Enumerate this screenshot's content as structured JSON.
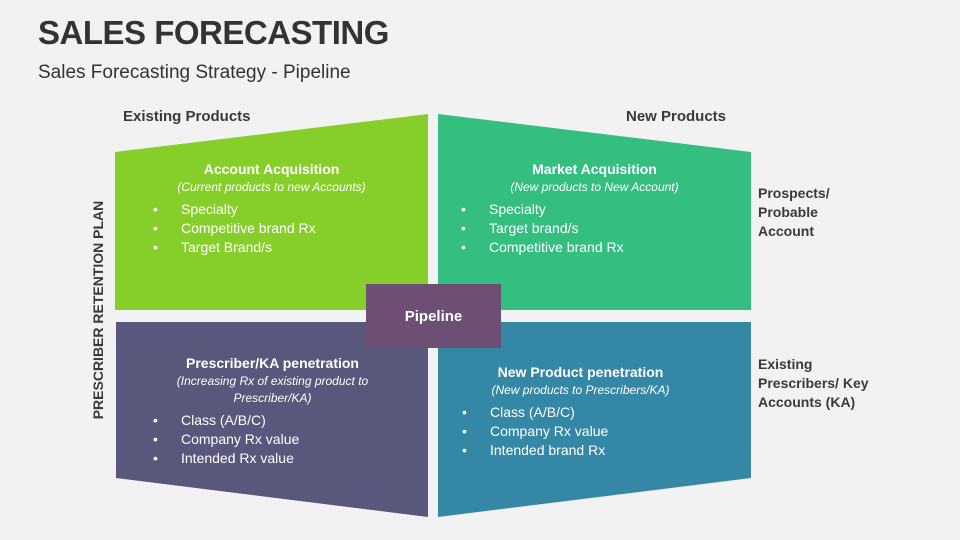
{
  "title": "SALES FORECASTING",
  "subtitle": "Sales Forecasting Strategy - Pipeline",
  "columns": {
    "left": "Existing Products",
    "right": "New Products"
  },
  "vertical_label": "PRESCRIBER RETENTION PLAN",
  "side_labels": {
    "top": "Prospects/ Probable Account",
    "bottom": "Existing Prescribers/ Key Accounts (KA)"
  },
  "center": "Pipeline",
  "colors": {
    "top_left": "#86cf2a",
    "top_right": "#34be7f",
    "bottom_left": "#59587c",
    "bottom_right": "#3487a5",
    "center": "#6d4f74"
  },
  "quadrants": {
    "top_left": {
      "title": "Account Acquisition",
      "subtitle": "(Current products to new Accounts)",
      "items": [
        "Specialty",
        "Competitive brand Rx",
        "Target Brand/s"
      ]
    },
    "top_right": {
      "title": "Market Acquisition",
      "subtitle": "(New products to New Account)",
      "items": [
        "Specialty",
        "Target brand/s",
        "Competitive brand Rx"
      ]
    },
    "bottom_left": {
      "title": "Prescriber/KA penetration",
      "subtitle": "(Increasing Rx of existing product to Prescriber/KA)",
      "items": [
        "Class (A/B/C)",
        "Company Rx value",
        "Intended Rx value"
      ]
    },
    "bottom_right": {
      "title": "New Product penetration",
      "subtitle": "(New products to Prescribers/KA)",
      "items": [
        "Class (A/B/C)",
        "Company Rx value",
        "Intended brand Rx"
      ]
    }
  }
}
